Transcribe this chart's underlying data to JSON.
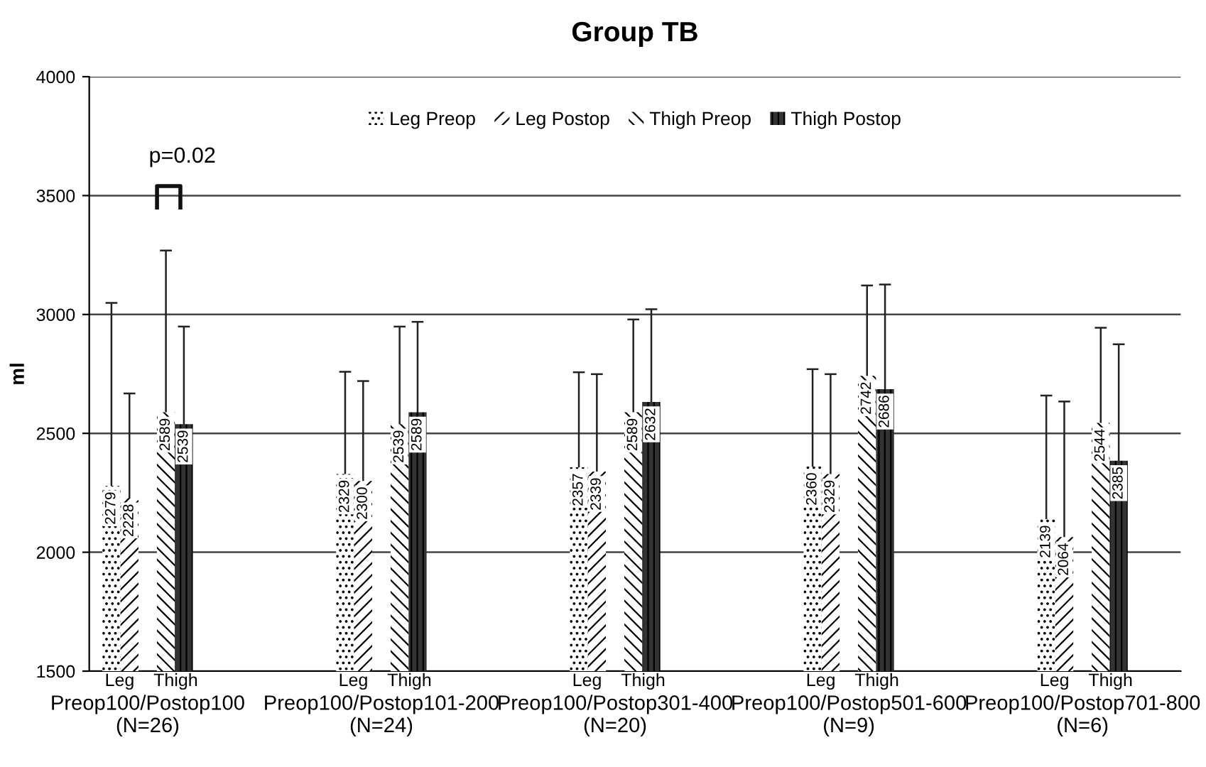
{
  "chart_data": {
    "type": "bar",
    "title": "Group TB",
    "ylabel": "ml",
    "categories": [
      "Preop100/Postop100\n(N=26)",
      "Preop100/Postop101-200\n(N=24)",
      "Preop100/Postop301-400\n(N=20)",
      "Preop100/Postop501-600\n(N=9)",
      "Preop100/Postop701-800\n(N=6)"
    ],
    "series": [
      {
        "name": "Leg Preop",
        "color": "#ffffff",
        "values": [
          2279,
          2329,
          2357,
          2360,
          2139
        ],
        "errors": [
          770,
          430,
          400,
          410,
          520
        ]
      },
      {
        "name": "Leg Postop",
        "color": "#ffffff",
        "values": [
          2228,
          2300,
          2339,
          2329,
          2064
        ],
        "errors": [
          440,
          420,
          410,
          420,
          570
        ]
      },
      {
        "name": "Thigh Preop",
        "color": "#ffffff",
        "values": [
          2589,
          2539,
          2589,
          2742,
          2544
        ],
        "errors": [
          680,
          410,
          390,
          380,
          400
        ]
      },
      {
        "name": "Thigh Postop",
        "color": "#333333",
        "values": [
          2539,
          2589,
          2632,
          2686,
          2385
        ],
        "errors": [
          410,
          380,
          390,
          440,
          490
        ]
      }
    ],
    "ylim": [
      1500,
      4000
    ],
    "yticks": [
      1500,
      2000,
      2500,
      3000,
      3500,
      4000
    ],
    "grid": "y",
    "legend": "top",
    "data_labels": true,
    "annotations": [
      "Leg",
      "Thigh",
      "Leg",
      "Thigh",
      "Leg",
      "Thigh",
      "Leg",
      "Thigh",
      "Leg",
      "Thigh",
      "p=0.02"
    ]
  }
}
